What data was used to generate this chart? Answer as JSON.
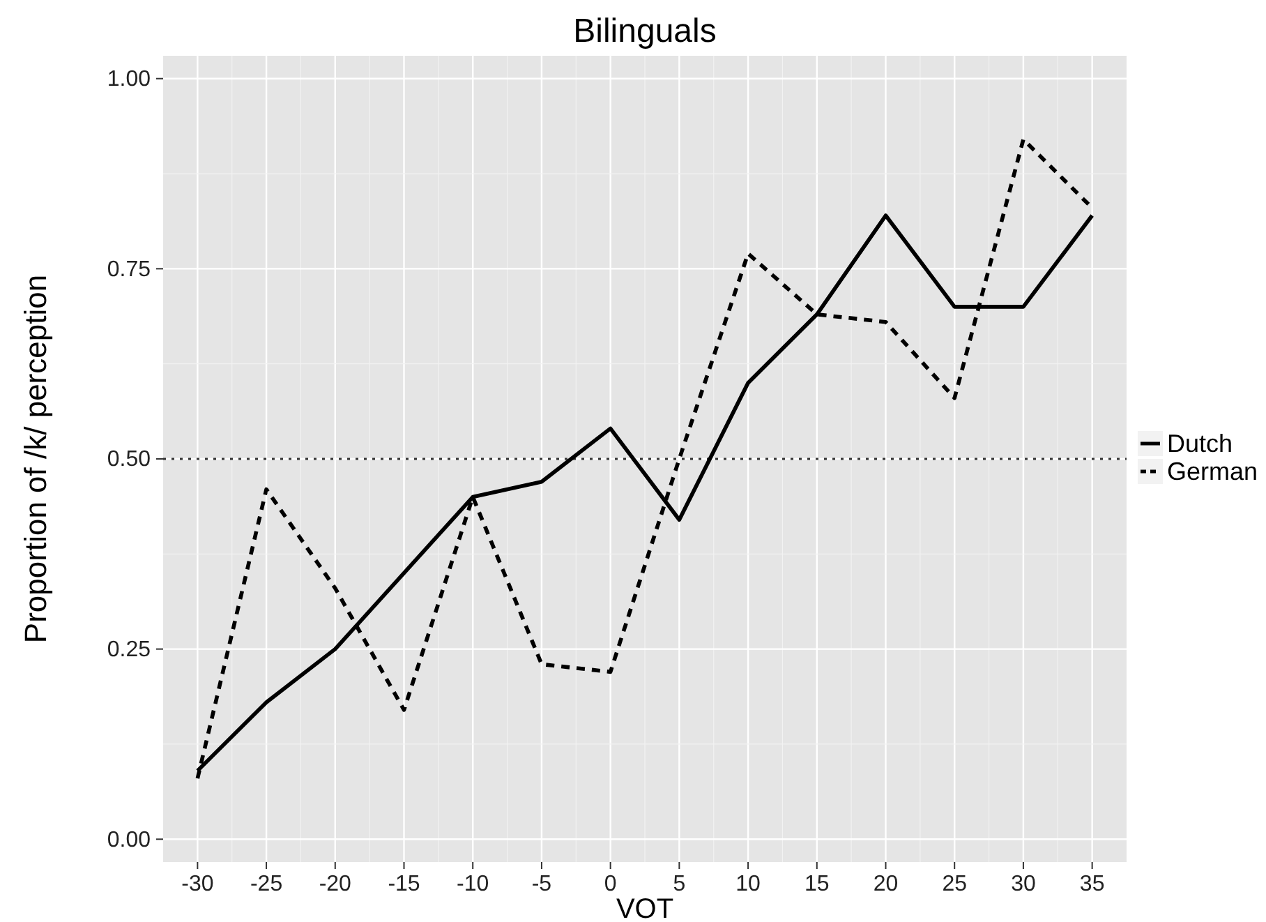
{
  "chart_data": {
    "type": "line",
    "title": "Bilinguals",
    "xlabel": "VOT",
    "ylabel": "Proportion of /k/ perception",
    "x": [
      -30,
      -25,
      -20,
      -15,
      -10,
      -5,
      0,
      5,
      10,
      15,
      20,
      25,
      30,
      35
    ],
    "series": [
      {
        "name": "Dutch",
        "color": "#000000",
        "line_style": "solid",
        "values": [
          0.09,
          0.18,
          0.25,
          0.35,
          0.45,
          0.47,
          0.54,
          0.42,
          0.6,
          0.69,
          0.82,
          0.7,
          0.7,
          0.82
        ]
      },
      {
        "name": "German",
        "color": "#000000",
        "line_style": "dashed",
        "values": [
          0.08,
          0.46,
          0.33,
          0.17,
          0.45,
          0.23,
          0.22,
          0.5,
          0.77,
          0.69,
          0.68,
          0.58,
          0.92,
          0.83
        ]
      }
    ],
    "xlim": [
      -32.5,
      37.5
    ],
    "ylim": [
      -0.03,
      1.03
    ],
    "xticks": [
      -30,
      -25,
      -20,
      -15,
      -10,
      -5,
      0,
      5,
      10,
      15,
      20,
      25,
      30,
      35
    ],
    "yticks": [
      {
        "value": 0,
        "label": "0.00"
      },
      {
        "value": 0.25,
        "label": "0.25"
      },
      {
        "value": 0.5,
        "label": "0.50"
      },
      {
        "value": 0.75,
        "label": "0.75"
      },
      {
        "value": 1,
        "label": "1.00"
      }
    ],
    "ref_lines": [
      {
        "axis": "y",
        "value": 0.5,
        "line_style": "dotted",
        "color": "#333333"
      }
    ],
    "grid": true,
    "legend": "right",
    "marker": "none"
  }
}
